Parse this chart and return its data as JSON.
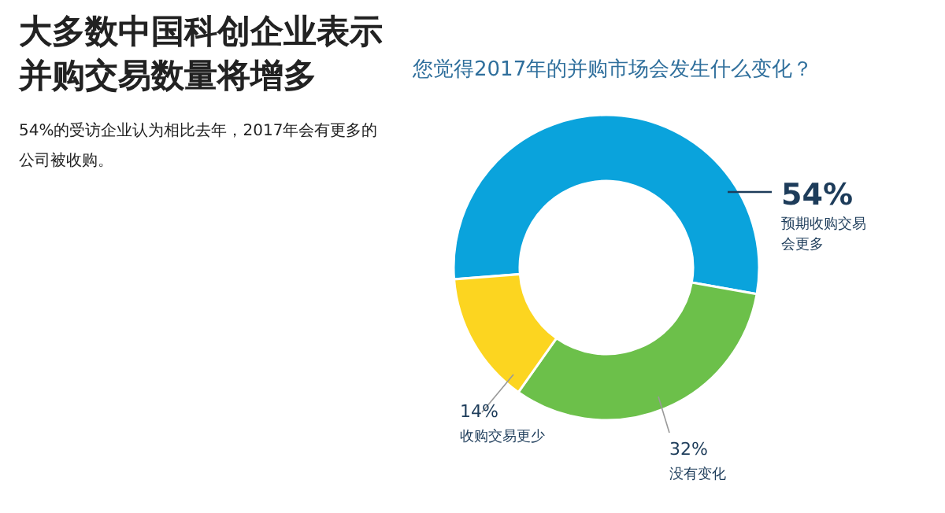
{
  "chart_data": {
    "type": "donut",
    "title": "大多数中国科创企业表示并购交易数量将增多",
    "subtitle": "54%的受访企业认为相比去年，2017年会有更多的公司被收购。",
    "annotations": [
      "您觉得2017年的并购市场会发生什么变化？"
    ],
    "categories": [
      "预期收购交易会更多",
      "没有变化",
      "收购交易更少"
    ],
    "values": [
      54,
      32,
      14
    ],
    "value_labels": [
      "54%",
      "32%",
      "14%"
    ],
    "colors": [
      "#0aa3dc",
      "#6cc04a",
      "#fcd520"
    ]
  }
}
